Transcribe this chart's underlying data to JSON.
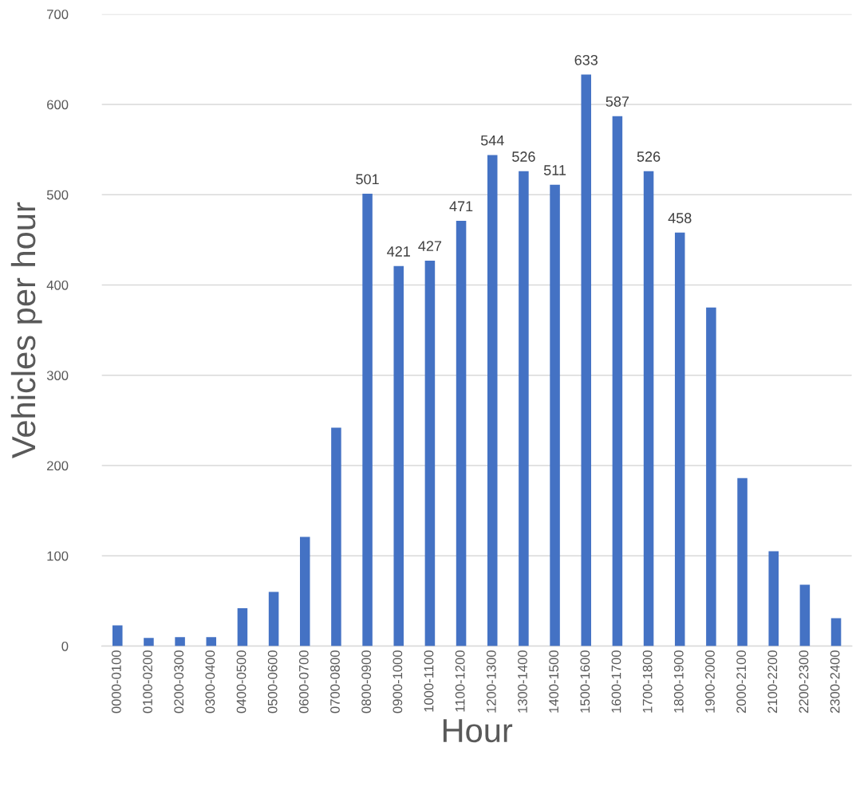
{
  "chart_data": {
    "type": "bar",
    "xlabel": "Hour",
    "ylabel": "Vehicles per hour",
    "categories": [
      "0000-0100",
      "0100-0200",
      "0200-0300",
      "0300-0400",
      "0400-0500",
      "0500-0600",
      "0600-0700",
      "0700-0800",
      "0800-0900",
      "0900-1000",
      "1000-1100",
      "1100-1200",
      "1200-1300",
      "1300-1400",
      "1400-1500",
      "1500-1600",
      "1600-1700",
      "1700-1800",
      "1800-1900",
      "1900-2000",
      "2000-2100",
      "2100-2200",
      "2200-2300",
      "2300-2400"
    ],
    "values": [
      23,
      9,
      10,
      10,
      42,
      60,
      121,
      242,
      501,
      421,
      427,
      471,
      544,
      526,
      511,
      633,
      587,
      526,
      458,
      375,
      186,
      105,
      68,
      31
    ],
    "value_labels": [
      null,
      null,
      null,
      null,
      null,
      null,
      null,
      null,
      "501",
      "421",
      "427",
      "471",
      "544",
      "526",
      "511",
      "633",
      "587",
      "526",
      "458",
      null,
      null,
      null,
      null,
      null
    ],
    "color": "#4472c4",
    "ylim": [
      0,
      700
    ],
    "yticks": [
      0,
      100,
      200,
      300,
      400,
      500,
      600,
      700
    ],
    "grid": "y",
    "legend": false
  }
}
